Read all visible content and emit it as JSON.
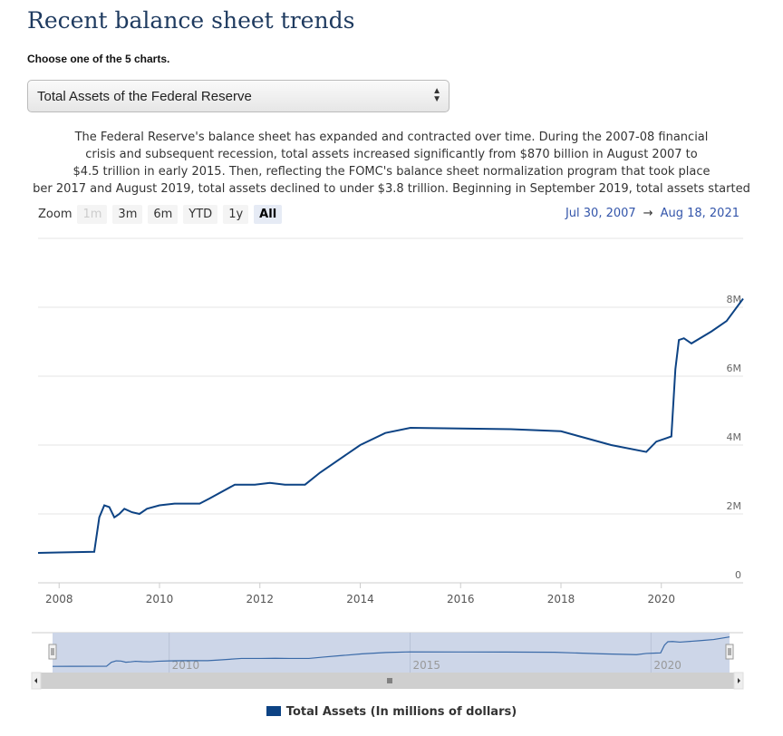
{
  "title": "Recent balance sheet trends",
  "choose_label": "Choose one of the 5 charts.",
  "select_value": "Total Assets of the Federal Reserve",
  "description": [
    "The Federal Reserve's balance sheet has expanded and contracted over time. During the 2007-08 financial",
    "crisis and subsequent recession, total assets increased significantly from $870 billion in August 2007 to",
    "$4.5 trillion in early 2015. Then, reflecting the FOMC's balance sheet normalization program that took place",
    "ber 2017 and August 2019, total assets declined to under $3.8 trillion. Beginning in September 2019, total assets started"
  ],
  "zoom": {
    "label": "Zoom",
    "buttons": [
      "1m",
      "3m",
      "6m",
      "YTD",
      "1y",
      "All"
    ],
    "active": "All",
    "disabled": [
      "1m"
    ]
  },
  "range": {
    "from": "Jul 30, 2007",
    "arrow": "→",
    "to": "Aug 18, 2021"
  },
  "colors": {
    "series": "#0d4384",
    "navigator_fill": "#cdd6e8"
  },
  "chart_data": {
    "type": "line",
    "title": "Total Assets of the Federal Reserve",
    "xlabel": "",
    "ylabel": "",
    "xlim": [
      2007.58,
      2021.63
    ],
    "ylim": [
      0,
      9
    ],
    "x_ticks": [
      "2008",
      "2010",
      "2012",
      "2014",
      "2016",
      "2018",
      "2020"
    ],
    "y_ticks": [
      "0",
      "2M",
      "4M",
      "6M",
      "8M"
    ],
    "navigator_ticks": [
      "2010",
      "2015",
      "2020"
    ],
    "legend": "Total Assets (In millions of dollars)",
    "legend_position": "bottom",
    "series": [
      {
        "name": "Total Assets (In millions of dollars)",
        "x": [
          2007.58,
          2008.0,
          2008.7,
          2008.8,
          2008.9,
          2009.0,
          2009.1,
          2009.2,
          2009.3,
          2009.45,
          2009.6,
          2009.75,
          2010.0,
          2010.3,
          2010.8,
          2011.0,
          2011.5,
          2011.9,
          2012.2,
          2012.5,
          2012.9,
          2013.2,
          2013.6,
          2014.0,
          2014.5,
          2015.0,
          2016.0,
          2017.0,
          2018.0,
          2018.5,
          2019.0,
          2019.7,
          2019.9,
          2020.1,
          2020.2,
          2020.28,
          2020.35,
          2020.45,
          2020.6,
          2021.0,
          2021.3,
          2021.63
        ],
        "y": [
          0.87,
          0.88,
          0.9,
          1.9,
          2.25,
          2.2,
          1.9,
          2.0,
          2.15,
          2.05,
          2.0,
          2.15,
          2.25,
          2.3,
          2.3,
          2.45,
          2.85,
          2.85,
          2.9,
          2.85,
          2.85,
          3.2,
          3.6,
          4.0,
          4.35,
          4.5,
          4.48,
          4.46,
          4.4,
          4.2,
          4.0,
          3.8,
          4.1,
          4.2,
          4.25,
          6.2,
          7.05,
          7.1,
          6.95,
          7.3,
          7.6,
          8.25
        ]
      }
    ]
  }
}
